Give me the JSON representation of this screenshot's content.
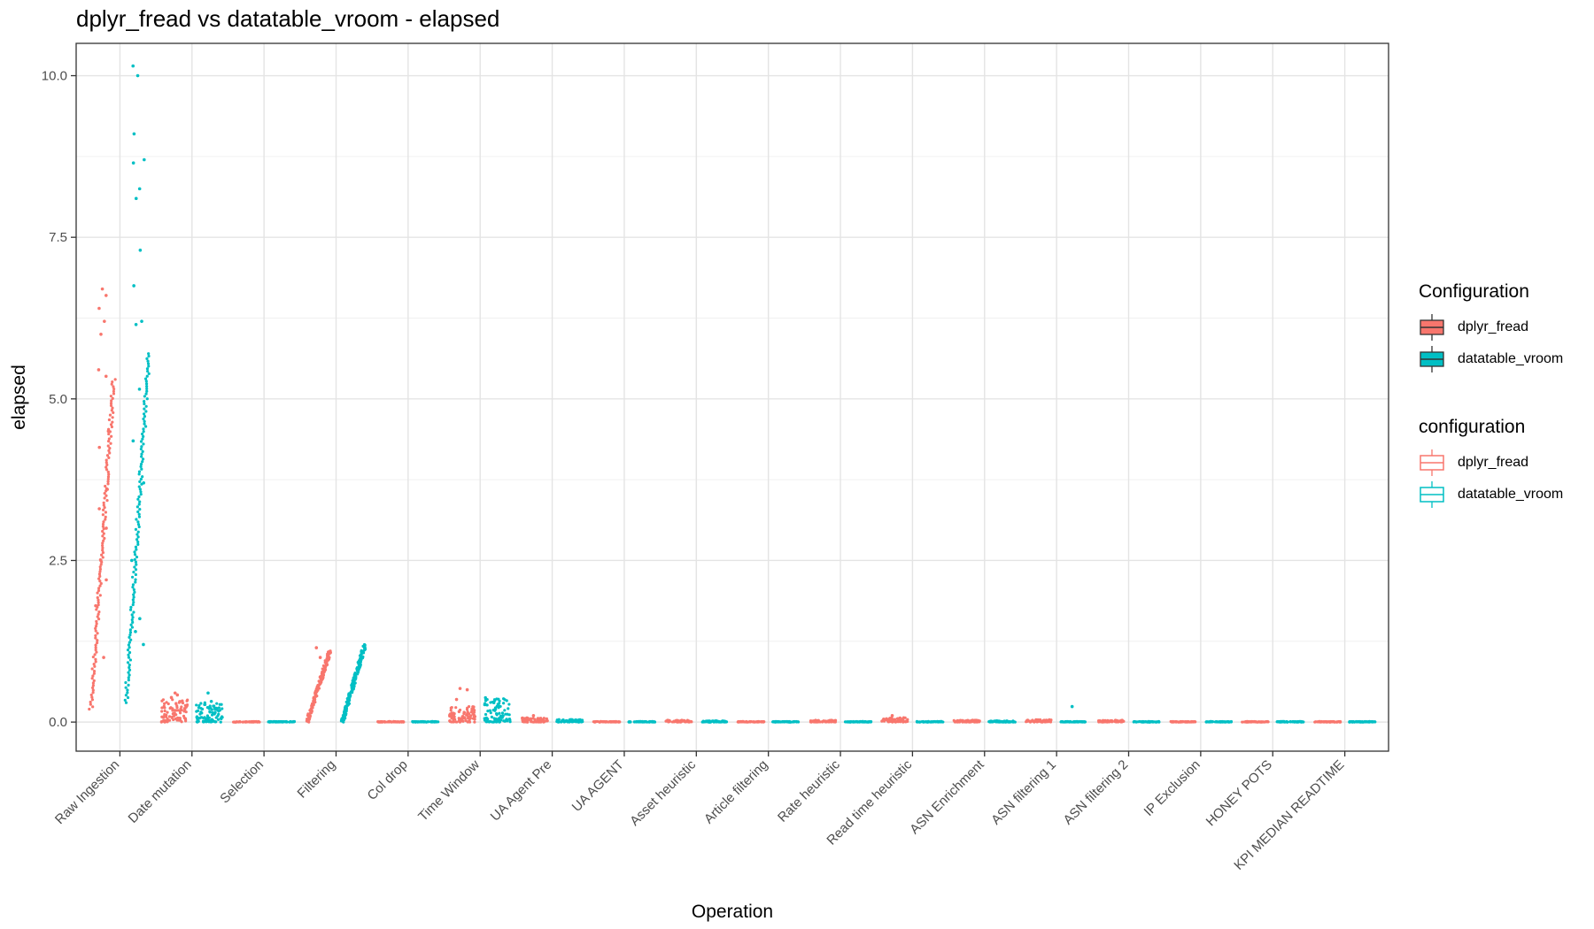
{
  "chart_data": {
    "type": "scatter",
    "title": "dplyr_fread vs datatable_vroom - elapsed",
    "xlabel": "Operation",
    "ylabel": "elapsed",
    "ylim": [
      -0.45,
      10.5
    ],
    "yticks": [
      0.0,
      2.5,
      5.0,
      7.5,
      10.0
    ],
    "ytick_labels": [
      "0.0",
      "2.5",
      "5.0",
      "7.5",
      "10.0"
    ],
    "grid": true,
    "legend_position": "right",
    "categories": [
      "Raw Ingestion",
      "Date mutation",
      "Selection",
      "Filtering",
      "Col drop",
      "Time Window",
      "UA Agent Pre",
      "UA AGENT",
      "Asset heuristic",
      "Article filtering",
      "Rate heuristic",
      "Read time heuristic",
      "ASN Enrichment",
      "ASN filtering 1",
      "ASN filtering 2",
      "IP Exclusion",
      "HONEY POTS",
      "KPI MEDIAN READTIME"
    ],
    "series": [
      {
        "name": "dplyr_fread",
        "color": "#F8766D",
        "ranges": [
          [
            0.2,
            5.3
          ],
          [
            0.0,
            0.35
          ],
          [
            0.0,
            0.01
          ],
          [
            0.0,
            1.1
          ],
          [
            0.0,
            0.01
          ],
          [
            0.0,
            0.25
          ],
          [
            0.0,
            0.07
          ],
          [
            0.0,
            0.01
          ],
          [
            0.0,
            0.03
          ],
          [
            0.0,
            0.01
          ],
          [
            0.0,
            0.03
          ],
          [
            0.0,
            0.07
          ],
          [
            0.0,
            0.03
          ],
          [
            0.0,
            0.04
          ],
          [
            0.0,
            0.03
          ],
          [
            0.0,
            0.01
          ],
          [
            0.0,
            0.01
          ],
          [
            0.0,
            0.01
          ]
        ],
        "outliers": [
          [
            5.45,
            5.35,
            6.0,
            6.2,
            6.4,
            6.6,
            6.7,
            4.5,
            4.25,
            3.6,
            3.3,
            3.0,
            2.5,
            2.2,
            1.8,
            1.0
          ],
          [
            0.45,
            0.42,
            0.38
          ],
          [],
          [
            1.15,
            1.0
          ],
          [],
          [
            0.52,
            0.5,
            0.35
          ],
          [
            0.1
          ],
          [],
          [],
          [],
          [],
          [
            0.1
          ],
          [],
          [],
          [],
          [],
          [],
          []
        ]
      },
      {
        "name": "datatable_vroom",
        "color": "#00BFC4",
        "ranges": [
          [
            0.3,
            5.7
          ],
          [
            0.0,
            0.3
          ],
          [
            0.0,
            0.01
          ],
          [
            0.0,
            1.2
          ],
          [
            0.0,
            0.01
          ],
          [
            0.0,
            0.4
          ],
          [
            0.0,
            0.04
          ],
          [
            0.0,
            0.01
          ],
          [
            0.0,
            0.02
          ],
          [
            0.0,
            0.01
          ],
          [
            0.0,
            0.01
          ],
          [
            0.0,
            0.01
          ],
          [
            0.0,
            0.02
          ],
          [
            0.0,
            0.01
          ],
          [
            0.0,
            0.01
          ],
          [
            0.0,
            0.01
          ],
          [
            0.0,
            0.01
          ],
          [
            0.0,
            0.01
          ]
        ],
        "outliers": [
          [
            10.15,
            10.0,
            9.1,
            8.7,
            8.65,
            8.25,
            8.1,
            7.3,
            6.75,
            6.2,
            6.15,
            5.15,
            4.35,
            3.7,
            2.5,
            1.6,
            1.4,
            1.2
          ],
          [
            0.45,
            0.32
          ],
          [],
          [],
          [],
          [
            0.3
          ],
          [],
          [],
          [],
          [],
          [],
          [],
          [],
          [
            0.24
          ],
          [],
          [],
          [],
          []
        ]
      }
    ],
    "legends": [
      {
        "title": "Configuration",
        "style": "filled",
        "entries": [
          "dplyr_fread",
          "datatable_vroom"
        ]
      },
      {
        "title": "configuration",
        "style": "outline",
        "entries": [
          "dplyr_fread",
          "datatable_vroom"
        ]
      }
    ]
  }
}
